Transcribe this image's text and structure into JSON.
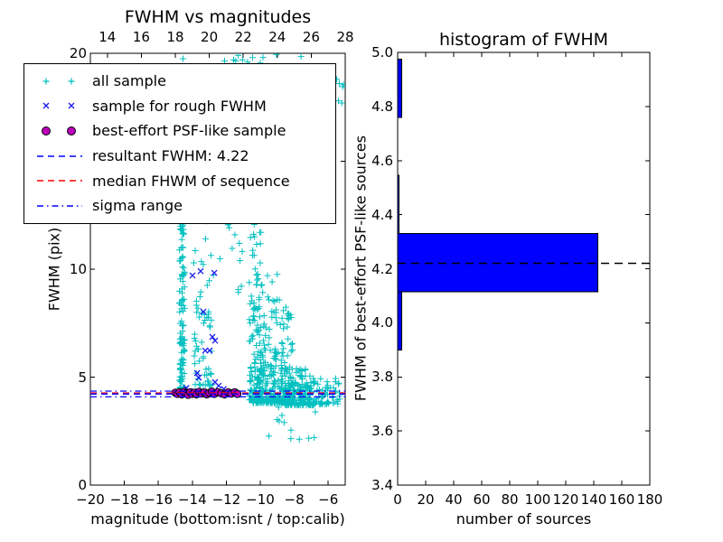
{
  "figure": {
    "background": "#ffffff"
  },
  "colors": {
    "axis": "#000000",
    "all_sample": "#00BFBF",
    "rough_sample": "#1A1AEE",
    "psf_fill": "#BB00BB",
    "psf_edge": "#000000",
    "resultant_line": "#0000FF",
    "median_line": "#FF0000",
    "sigma_line": "#0000FF",
    "hist_bar": "#0000FF",
    "hist_median_line": "#000000"
  },
  "chart_data": [
    {
      "type": "scatter",
      "title": "FWHM vs magnitudes",
      "xlabel": "magnitude (bottom:isnt / top:calib)",
      "ylabel": "FWHM (pix)",
      "xlim": [
        -20,
        -5
      ],
      "ylim": [
        0,
        20
      ],
      "top_xlim": [
        13,
        28
      ],
      "xticks": [
        -20,
        -18,
        -16,
        -14,
        -12,
        -10,
        -8,
        -6
      ],
      "xtick_labels": [
        "−20",
        "−18",
        "−16",
        "−14",
        "−12",
        "−10",
        "−8",
        "−6"
      ],
      "top_xticks": [
        14,
        16,
        18,
        20,
        22,
        24,
        26,
        28
      ],
      "yticks": [
        0,
        5,
        10,
        15,
        20
      ],
      "legend": [
        {
          "marker": "plus",
          "color": "#00BFBF",
          "label": "all sample"
        },
        {
          "marker": "x",
          "color": "#1A1AEE",
          "label": "sample for rough FWHM"
        },
        {
          "marker": "circle",
          "color": "#BB00BB",
          "label": "best-effort PSF-like sample"
        },
        {
          "marker": "dashed",
          "color": "#0000FF",
          "label": "resultant FWHM: 4.22"
        },
        {
          "marker": "dashed",
          "color": "#FF0000",
          "label": "median FHWM of sequence"
        },
        {
          "marker": "dashdot",
          "color": "#0000FF",
          "label": "sigma range"
        }
      ],
      "lines": {
        "resultant": {
          "value": 4.22,
          "style": "dashed",
          "color": "#0000FF"
        },
        "median": {
          "value": 4.26,
          "style": "dashed",
          "color": "#FF0000"
        },
        "sigma": {
          "values": [
            4.09,
            4.35
          ],
          "style": "dashdot",
          "color": "#0000FF"
        }
      },
      "all_sample": {
        "seed": 7,
        "clusters": [
          {
            "name": "col1_dense",
            "n": 115,
            "x": [
              -14.78,
              -14.44
            ],
            "y": [
              4.35,
              12.2
            ],
            "pow": 2.0
          },
          {
            "name": "col1_high",
            "n": 5,
            "x": [
              -14.74,
              -14.5
            ],
            "y": [
              12.2,
              14.9
            ],
            "pow": 1.0
          },
          {
            "name": "mid_cluster",
            "n": 58,
            "x": [
              -13.95,
              -12.8
            ],
            "y": [
              4.6,
              11.0
            ],
            "pow": 1.9
          },
          {
            "name": "mid_upper_sparse",
            "n": 38,
            "x": [
              -13.6,
              -11.05
            ],
            "y": [
              8.5,
              19.9
            ],
            "pow": 1.0
          },
          {
            "name": "big_column",
            "n": 150,
            "x": [
              -10.65,
              -9.8
            ],
            "y": [
              3.95,
              19.9
            ],
            "pow": 3.2
          },
          {
            "name": "cloud_main",
            "n": 280,
            "x": [
              -10.45,
              -8.1
            ],
            "y": [
              3.8,
              8.8
            ],
            "pow": 2.6
          },
          {
            "name": "cloud_right",
            "n": 170,
            "x": [
              -8.6,
              -6.85
            ],
            "y": [
              3.7,
              5.4
            ],
            "pow": 1.8
          },
          {
            "name": "tail_right",
            "n": 70,
            "x": [
              -7.2,
              -5.3
            ],
            "y": [
              3.75,
              4.95
            ],
            "pow": 1.6
          },
          {
            "name": "below_band",
            "n": 13,
            "x": [
              -9.7,
              -6.7
            ],
            "y": [
              2.1,
              3.85
            ],
            "pow": 1.0
          },
          {
            "name": "upper_sparse",
            "n": 24,
            "x": [
              -11.6,
              -8.9
            ],
            "y": [
              8.0,
              19.8
            ],
            "pow": 1.0
          }
        ],
        "extra_points": [
          [
            -14.55,
            19.75
          ],
          [
            -12.1,
            19.65
          ],
          [
            -11.3,
            19.9
          ],
          [
            -11.05,
            19.7
          ],
          [
            -10.75,
            19.6
          ],
          [
            -10.45,
            19.8
          ],
          [
            -10.0,
            19.55
          ],
          [
            -9.05,
            19.95
          ],
          [
            -7.6,
            19.85
          ],
          [
            -5.5,
            18.8
          ],
          [
            -5.35,
            18.6
          ],
          [
            -5.15,
            18.45
          ],
          [
            -5.4,
            17.8
          ],
          [
            -5.2,
            17.7
          ],
          [
            -5.1,
            18.55
          ]
        ]
      },
      "rough_sample_points": [
        [
          -13.51,
          9.91
        ],
        [
          -12.71,
          9.83
        ],
        [
          -13.99,
          9.71
        ],
        [
          -13.35,
          8.03
        ],
        [
          -12.82,
          6.86
        ],
        [
          -12.66,
          6.69
        ],
        [
          -13.24,
          6.23
        ],
        [
          -12.98,
          6.23
        ],
        [
          -13.72,
          5.19
        ],
        [
          -13.62,
          4.98
        ],
        [
          -12.66,
          4.77
        ],
        [
          -12.45,
          4.6
        ],
        [
          -14.35,
          4.5
        ],
        [
          -13.9,
          4.35
        ],
        [
          -12.15,
          4.45
        ],
        [
          -11.8,
          4.32
        ],
        [
          -14.05,
          4.28
        ],
        [
          -12.35,
          4.3
        ]
      ],
      "psf_sample_points": [
        [
          -15.0,
          4.28
        ],
        [
          -14.88,
          4.22
        ],
        [
          -14.75,
          4.3
        ],
        [
          -14.62,
          4.2
        ],
        [
          -14.5,
          4.32
        ],
        [
          -14.38,
          4.25
        ],
        [
          -14.25,
          4.18
        ],
        [
          -14.12,
          4.3
        ],
        [
          -14.0,
          4.22
        ],
        [
          -13.88,
          4.28
        ],
        [
          -13.75,
          4.2
        ],
        [
          -13.6,
          4.32
        ],
        [
          -13.45,
          4.24
        ],
        [
          -13.3,
          4.3
        ],
        [
          -13.15,
          4.2
        ],
        [
          -13.0,
          4.27
        ],
        [
          -12.85,
          4.33
        ],
        [
          -12.7,
          4.22
        ],
        [
          -12.5,
          4.3
        ],
        [
          -12.3,
          4.25
        ],
        [
          -12.1,
          4.2
        ],
        [
          -11.9,
          4.3
        ],
        [
          -11.7,
          4.24
        ],
        [
          -11.5,
          4.3
        ],
        [
          -11.35,
          4.22
        ]
      ]
    },
    {
      "type": "bar",
      "orientation": "horizontal",
      "title": "histogram of FWHM",
      "xlabel": "number of sources",
      "ylabel": "FWHM of best-effort PSF-like sources",
      "xlim": [
        0,
        180
      ],
      "ylim": [
        3.4,
        5.0
      ],
      "xticks": [
        0,
        20,
        40,
        60,
        80,
        100,
        120,
        140,
        160,
        180
      ],
      "yticks": [
        3.4,
        3.6,
        3.8,
        4.0,
        4.2,
        4.4,
        4.6,
        4.8,
        5.0
      ],
      "ytick_labels": [
        "3.4",
        "3.6",
        "3.8",
        "4.0",
        "4.2",
        "4.4",
        "4.6",
        "4.8",
        "5.0"
      ],
      "bins": {
        "edges": [
          3.9,
          4.115,
          4.33,
          4.545,
          4.76,
          4.975
        ],
        "counts": [
          3,
          143,
          1,
          0,
          3
        ]
      },
      "median_line": {
        "value": 4.22,
        "style": "dashed",
        "color": "#000000"
      }
    }
  ]
}
